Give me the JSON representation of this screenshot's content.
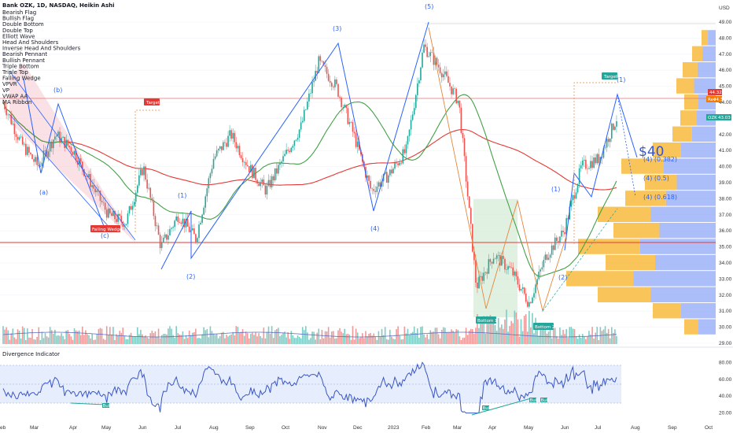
{
  "header": {
    "title": "Bank OZK, 1D, NASDAQ, Heikin Ashi",
    "currency": "USD",
    "indicators": [
      "Bearish Flag",
      "Bullish Flag",
      "Double Bottom",
      "Double Top",
      "Elliott Wave",
      "Head And Shoulders",
      "Inverse Head And Shoulders",
      "Bearish Pennant",
      "Bullish Pennant",
      "Triple Bottom",
      "Triple Top",
      "Falling Wedge",
      "VPVR",
      "VP",
      "VWAP AA",
      "MA Ribbon"
    ]
  },
  "price_tags": {
    "ticker": "OZK",
    "last": "43.03",
    "tag_a": "44.32",
    "tag_b": "44.36",
    "tag_b_prefix": "Rev"
  },
  "annotations": {
    "big_price": "$40",
    "fib_382": "(4) (0.382)",
    "fib_5": "(4) (0.5)",
    "fib_618": "(4) (0.618)",
    "target": "Target",
    "falling_wedge": "Falling Wedge",
    "bottom1": "Bottom 1",
    "bottom2": "Bottom 2",
    "waves_abc": [
      "(a)",
      "(b)",
      "(c)"
    ],
    "waves_main": [
      "(1)",
      "(2)",
      "(3)",
      "(4)",
      "(5)"
    ],
    "waves_new": [
      "(1)",
      "(2)",
      "(1)"
    ],
    "bull": "Bull"
  },
  "sub_panel": {
    "title": "Divergence Indicator"
  },
  "colors": {
    "bull": "#26a69a",
    "bear": "#ef5350",
    "ma_long": "#e53935",
    "ma_mid": "#43a047",
    "elliott": "#2962ff",
    "vp_up": "#f7b731",
    "vp_down": "#90a8f7",
    "rsi": "#3a56c5",
    "rsi_band": "#dbe6fb"
  },
  "chart_data": [
    {
      "type": "line",
      "subtype": "candlestick-heikin-ashi",
      "title": "Bank OZK, 1D, NASDAQ, Heikin Ashi",
      "x": [
        "Feb",
        "Mar",
        "Apr",
        "May",
        "Jun",
        "Jul",
        "Aug",
        "Sep",
        "Oct",
        "Nov",
        "Dec",
        "2023",
        "Feb",
        "Mar",
        "Apr",
        "May",
        "Jun",
        "Jul",
        "Aug",
        "Sep",
        "Oct"
      ],
      "y_ticks": [
        "49.00",
        "48.00",
        "47.00",
        "46.00",
        "45.00",
        "44.00",
        "43.00",
        "42.00",
        "41.00",
        "40.00",
        "39.00",
        "38.00",
        "37.00",
        "36.00",
        "35.00",
        "34.00",
        "33.00",
        "32.00",
        "31.00",
        "30.00",
        "29.00"
      ],
      "ylim": [
        29,
        49
      ],
      "series": [
        {
          "name": "close_path",
          "points": [
            [
              "Feb",
              44.0
            ],
            [
              "Feb+",
              41.5
            ],
            [
              "Mar",
              40.0
            ],
            [
              "Mar+",
              42.0
            ],
            [
              "Apr",
              41.0
            ],
            [
              "Apr+",
              39.0
            ],
            [
              "May",
              37.0
            ],
            [
              "May+",
              36.5
            ],
            [
              "Jun",
              40.0
            ],
            [
              "Jun+",
              35.0
            ],
            [
              "Jul",
              37.0
            ],
            [
              "Jul+",
              35.5
            ],
            [
              "Aug",
              40.5
            ],
            [
              "Aug+",
              42.0
            ],
            [
              "Sep",
              40.0
            ],
            [
              "Sep+",
              38.5
            ],
            [
              "Oct",
              40.5
            ],
            [
              "Oct+",
              42.5
            ],
            [
              "Nov",
              46.5
            ],
            [
              "Nov+",
              45.0
            ],
            [
              "Dec",
              42.0
            ],
            [
              "Dec+",
              38.5
            ],
            [
              "2023",
              39.5
            ],
            [
              "2023+",
              41.0
            ],
            [
              "Feb",
              47.5
            ],
            [
              "Feb+",
              46.0
            ],
            [
              "Mar",
              44.0
            ],
            [
              "Mar+",
              32.5
            ],
            [
              "Apr",
              34.5
            ],
            [
              "Apr+",
              33.5
            ],
            [
              "May",
              31.5
            ],
            [
              "May+",
              34.5
            ],
            [
              "Jun",
              36.0
            ],
            [
              "Jun+",
              40.0
            ],
            [
              "Jul",
              40.5
            ],
            [
              "Jul+",
              43.0
            ]
          ]
        }
      ],
      "moving_averages": [
        "MA Ribbon"
      ],
      "volume_panel": true
    },
    {
      "type": "line",
      "title": "Divergence Indicator",
      "y_ticks": [
        "80.00",
        "60.00",
        "40.00",
        "20.00"
      ],
      "ylim": [
        15,
        85
      ],
      "band": [
        35,
        70
      ],
      "labels": [
        "Bull",
        "Bull",
        "Bull",
        "Bull"
      ]
    }
  ]
}
